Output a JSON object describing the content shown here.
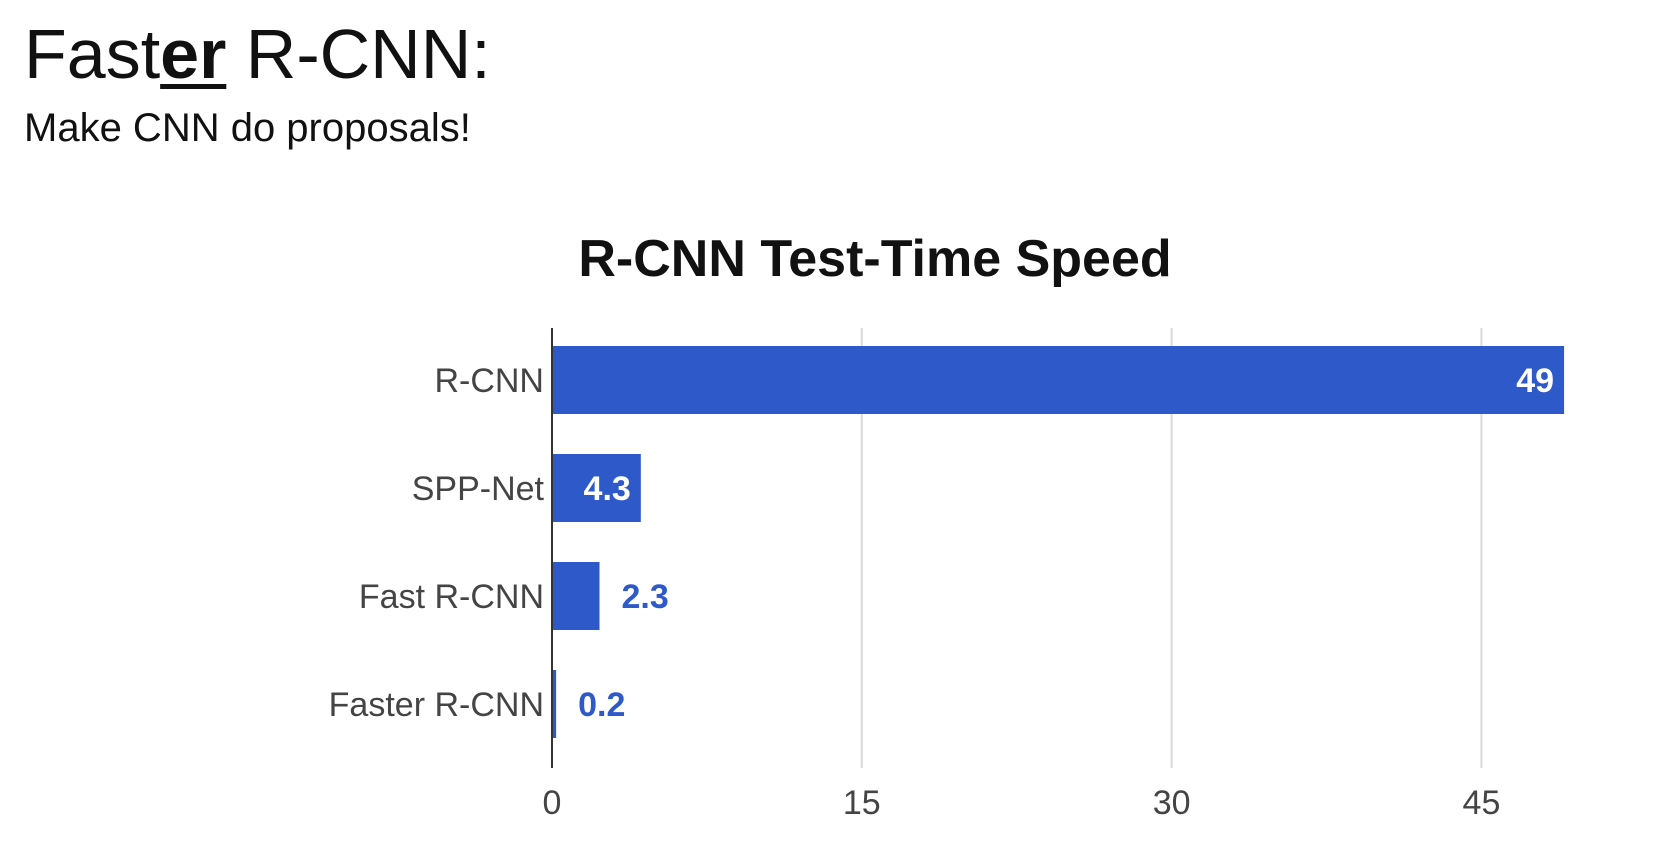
{
  "slide": {
    "title_prefix": "Fast",
    "title_emphasis": "er",
    "title_suffix": " R-CNN:",
    "subtitle": "Make CNN do proposals!"
  },
  "colors": {
    "bar": "#2e59c9",
    "bar_label_inside": "#ffffff",
    "bar_label_outside": "#2e59c9",
    "grid": "#d9d9d9",
    "axis": "#333333",
    "tick_label": "#444444"
  },
  "chart_data": {
    "type": "bar",
    "orientation": "horizontal",
    "title": "R-CNN Test-Time Speed",
    "categories": [
      "R-CNN",
      "SPP-Net",
      "Fast R-CNN",
      "Faster R-CNN"
    ],
    "values": [
      49,
      4.3,
      2.3,
      0.2
    ],
    "data_labels": [
      "49",
      "4.3",
      "2.3",
      "0.2"
    ],
    "xlim": [
      0,
      55
    ],
    "xticks": [
      0,
      15,
      30,
      45
    ],
    "xlabel": "",
    "ylabel": "",
    "grid": true,
    "legend": "none"
  }
}
